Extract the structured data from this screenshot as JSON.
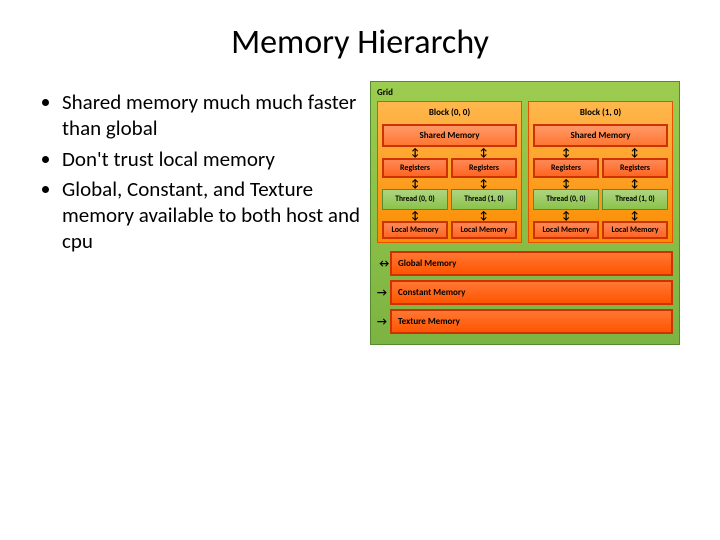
{
  "title": "Memory Hierarchy",
  "bullets": [
    "Shared memory much much faster than global",
    "Don't trust local memory",
    "Global, Constant, and Texture memory available to both host and cpu"
  ],
  "diagram": {
    "background_color": "#8bc34a",
    "grid_label": "Grid",
    "blocks": [
      {
        "label": "Block (0, 0)"
      },
      {
        "label": "Block (1, 0)"
      }
    ],
    "shared_memory_label": "Shared Memory",
    "registers_label": "Registers",
    "threads": [
      [
        "Thread (0, 0)",
        "Thread (1, 0)"
      ],
      [
        "Thread (0, 0)",
        "Thread (1, 0)"
      ]
    ],
    "local_memory_label": "Local Memory",
    "memory_bars": [
      {
        "label": "Global Memory",
        "arrow": "↔"
      },
      {
        "label": "Constant Memory",
        "arrow": "→"
      },
      {
        "label": "Texture Memory",
        "arrow": "→"
      }
    ],
    "colors": {
      "grid_bg": "#8bc34a",
      "block_bg": "#fb8c00",
      "mem_box_bg": "#ff6622",
      "mem_box_border": "#cc3300",
      "thread_bg": "#8bc34a",
      "text": "#000000"
    },
    "fontsize": {
      "title": 34,
      "bullet": 21,
      "box_label": 9
    }
  }
}
